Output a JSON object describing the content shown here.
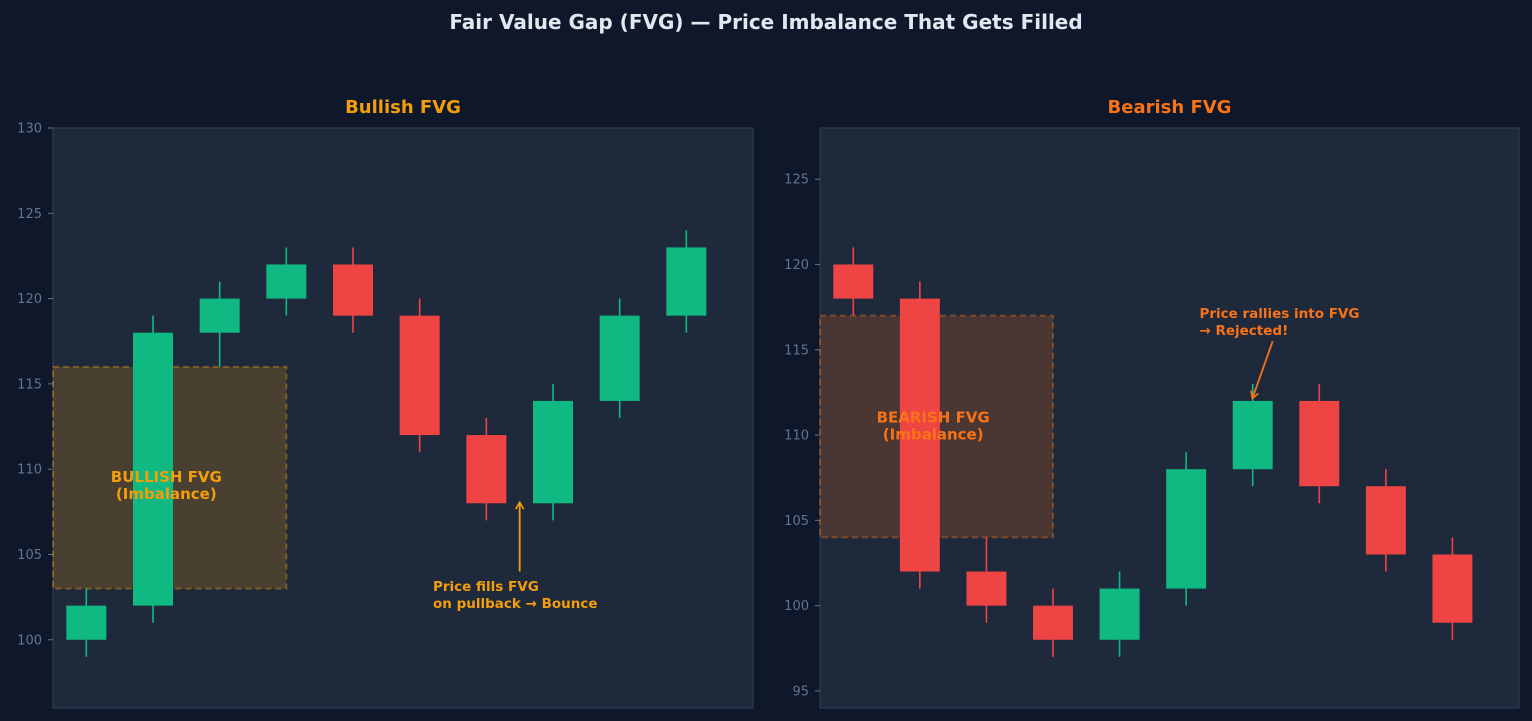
{
  "title": "Fair Value Gap (FVG) — Price Imbalance That Gets Filled",
  "colors": {
    "background": "#0f172a",
    "panel": "#1e293b",
    "bullish": "#10b981",
    "bearish": "#ef4444",
    "bull_accent": "#f59e0b",
    "bear_accent": "#f97316",
    "tick": "#64748b"
  },
  "chart_data": [
    {
      "type": "candlestick",
      "title": "Bullish FVG",
      "ylim": [
        96,
        130
      ],
      "yticks": [
        "100",
        "105",
        "110",
        "115",
        "120",
        "125",
        "130"
      ],
      "candles": [
        {
          "x": 1,
          "open": 100,
          "high": 103,
          "low": 99,
          "close": 102
        },
        {
          "x": 2,
          "open": 102,
          "high": 119,
          "low": 101,
          "close": 118
        },
        {
          "x": 3,
          "open": 118,
          "high": 121,
          "low": 116,
          "close": 120
        },
        {
          "x": 4,
          "open": 120,
          "high": 123,
          "low": 119,
          "close": 122
        },
        {
          "x": 5,
          "open": 122,
          "high": 123,
          "low": 118,
          "close": 119
        },
        {
          "x": 6,
          "open": 119,
          "high": 120,
          "low": 111,
          "close": 112
        },
        {
          "x": 7,
          "open": 112,
          "high": 113,
          "low": 107,
          "close": 108
        },
        {
          "x": 8,
          "open": 108,
          "high": 115,
          "low": 107,
          "close": 114
        },
        {
          "x": 9,
          "open": 114,
          "high": 120,
          "low": 113,
          "close": 119
        },
        {
          "x": 10,
          "open": 119,
          "high": 124,
          "low": 118,
          "close": 123
        }
      ],
      "zone": {
        "x_start": 0.5,
        "x_end": 4,
        "y_low": 103,
        "y_high": 116,
        "label": [
          "BULLISH FVG",
          "(Imbalance)"
        ],
        "label_x": 2.2,
        "label_y": 109
      },
      "annotation": {
        "lines": [
          "Price fills FVG",
          "on pullback → Bounce"
        ],
        "text_x": 6.2,
        "text_y": 102.5,
        "arrow_from": [
          7.5,
          104
        ],
        "arrow_to": [
          7.5,
          108
        ]
      }
    },
    {
      "type": "candlestick",
      "title": "Bearish FVG",
      "ylim": [
        94,
        128
      ],
      "yticks": [
        "95",
        "100",
        "105",
        "110",
        "115",
        "120",
        "125"
      ],
      "candles": [
        {
          "x": 1,
          "open": 120,
          "high": 121,
          "low": 117,
          "close": 118
        },
        {
          "x": 2,
          "open": 118,
          "high": 119,
          "low": 101,
          "close": 102
        },
        {
          "x": 3,
          "open": 102,
          "high": 104,
          "low": 99,
          "close": 100
        },
        {
          "x": 4,
          "open": 100,
          "high": 101,
          "low": 97,
          "close": 98
        },
        {
          "x": 5,
          "open": 98,
          "high": 102,
          "low": 97,
          "close": 101
        },
        {
          "x": 6,
          "open": 101,
          "high": 109,
          "low": 100,
          "close": 108
        },
        {
          "x": 7,
          "open": 108,
          "high": 113,
          "low": 107,
          "close": 112
        },
        {
          "x": 8,
          "open": 112,
          "high": 113,
          "low": 106,
          "close": 107
        },
        {
          "x": 9,
          "open": 107,
          "high": 108,
          "low": 102,
          "close": 103
        },
        {
          "x": 10,
          "open": 103,
          "high": 104,
          "low": 98,
          "close": 99
        }
      ],
      "zone": {
        "x_start": 0.5,
        "x_end": 4,
        "y_low": 104,
        "y_high": 117,
        "label": [
          "BEARISH FVG",
          "(Imbalance)"
        ],
        "label_x": 2.2,
        "label_y": 110.5
      },
      "annotation": {
        "lines": [
          "Price rallies into FVG",
          "→ Rejected!"
        ],
        "text_x": 6.2,
        "text_y": 116.5,
        "arrow_from": [
          7.3,
          115.5
        ],
        "arrow_to": [
          7,
          112.2
        ]
      }
    }
  ]
}
